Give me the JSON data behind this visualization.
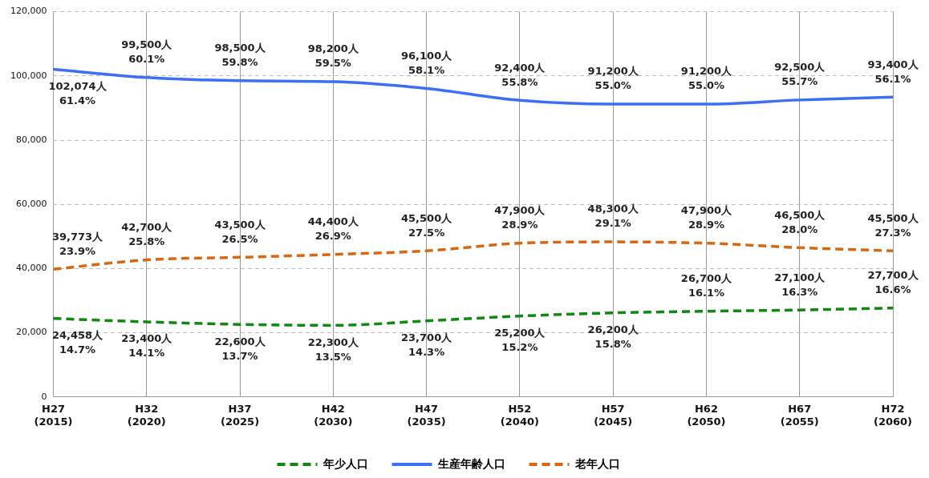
{
  "chart_data": {
    "type": "line",
    "categories": [
      "H27\n(2015)",
      "H32\n(2020)",
      "H37\n(2025)",
      "H42\n(2030)",
      "H47\n(2035)",
      "H52\n(2040)",
      "H57\n(2045)",
      "H62\n(2050)",
      "H67\n(2055)",
      "H72\n(2060)"
    ],
    "series": [
      {
        "name": "年少人口",
        "color": "#0f8a0f",
        "line_style": "dashed",
        "values": [
          24458,
          23400,
          22600,
          22300,
          23700,
          25200,
          26200,
          26700,
          27100,
          27700
        ],
        "value_labels": [
          "24,458人\n14.7%",
          "23,400人\n14.1%",
          "22,600人\n13.7%",
          "22,300人\n13.5%",
          "23,700人\n14.3%",
          "25,200人\n15.2%",
          "26,200人\n15.8%",
          "26,700人\n16.1%",
          "27,100人\n16.3%",
          "27,700人\n16.6%"
        ]
      },
      {
        "name": "生産年齢人口",
        "color": "#3c6ff5",
        "line_style": "solid",
        "values": [
          102074,
          99500,
          98500,
          98200,
          96100,
          92400,
          91200,
          91200,
          92500,
          93400
        ],
        "value_labels": [
          "102,074人\n61.4%",
          "99,500人\n60.1%",
          "98,500人\n59.8%",
          "98,200人\n59.5%",
          "96,100人\n58.1%",
          "92,400人\n55.8%",
          "91,200人\n55.0%",
          "91,200人\n55.0%",
          "92,500人\n55.7%",
          "93,400人\n56.1%"
        ]
      },
      {
        "name": "老年人口",
        "color": "#d9670f",
        "line_style": "dashed",
        "values": [
          39773,
          42700,
          43500,
          44400,
          45500,
          47900,
          48300,
          47900,
          46500,
          45500
        ],
        "value_labels": [
          "39,773人\n23.9%",
          "42,700人\n25.8%",
          "43,500人\n26.5%",
          "44,400人\n26.9%",
          "45,500人\n27.5%",
          "47,900人\n28.9%",
          "48,300人\n29.1%",
          "47,900人\n28.9%",
          "46,500人\n28.0%",
          "45,500人\n27.3%"
        ]
      }
    ],
    "ylim": [
      0,
      120000
    ],
    "yticks": [
      {
        "value": 0,
        "label": "0"
      },
      {
        "value": 20000,
        "label": "20,000"
      },
      {
        "value": 40000,
        "label": "40,000"
      },
      {
        "value": 60000,
        "label": "60,000"
      },
      {
        "value": 80000,
        "label": "80,000"
      },
      {
        "value": 100000,
        "label": "100,000"
      },
      {
        "value": 120000,
        "label": "120,000"
      }
    ],
    "grid": true,
    "legend": "bottom",
    "marker": "none"
  }
}
